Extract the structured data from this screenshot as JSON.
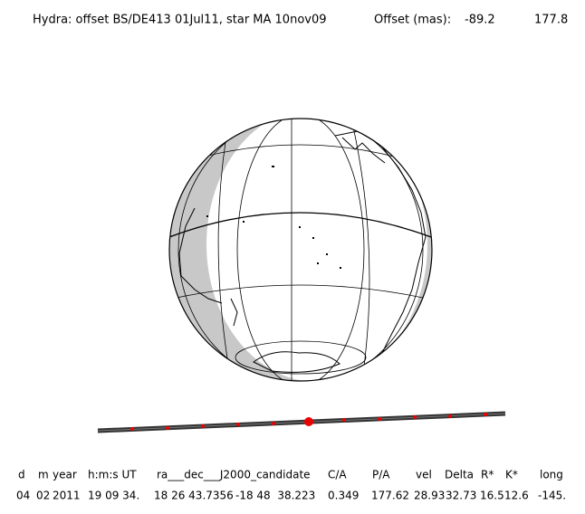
{
  "header": {
    "title": "Hydra: offset BS/DE413 01Jul11, star MA 10nov09",
    "offset_label": "Offset (mas):",
    "offset_x": "-89.2",
    "offset_y": "177.8"
  },
  "table": {
    "columns": [
      "d",
      "m",
      "year",
      "h:m:s UT",
      "ra___dec___J2000_candidate",
      "C/A",
      "P/A",
      "vel",
      "Delta",
      "R*",
      "K*",
      "long"
    ],
    "rows": [
      [
        "04",
        "02",
        "2011",
        "19 09 34.",
        "18 26 43.7356",
        "-18 48  38.223",
        "0.349",
        "177.62",
        "28.93",
        "32.73",
        "16.5",
        "12.6",
        "-145."
      ]
    ]
  }
}
